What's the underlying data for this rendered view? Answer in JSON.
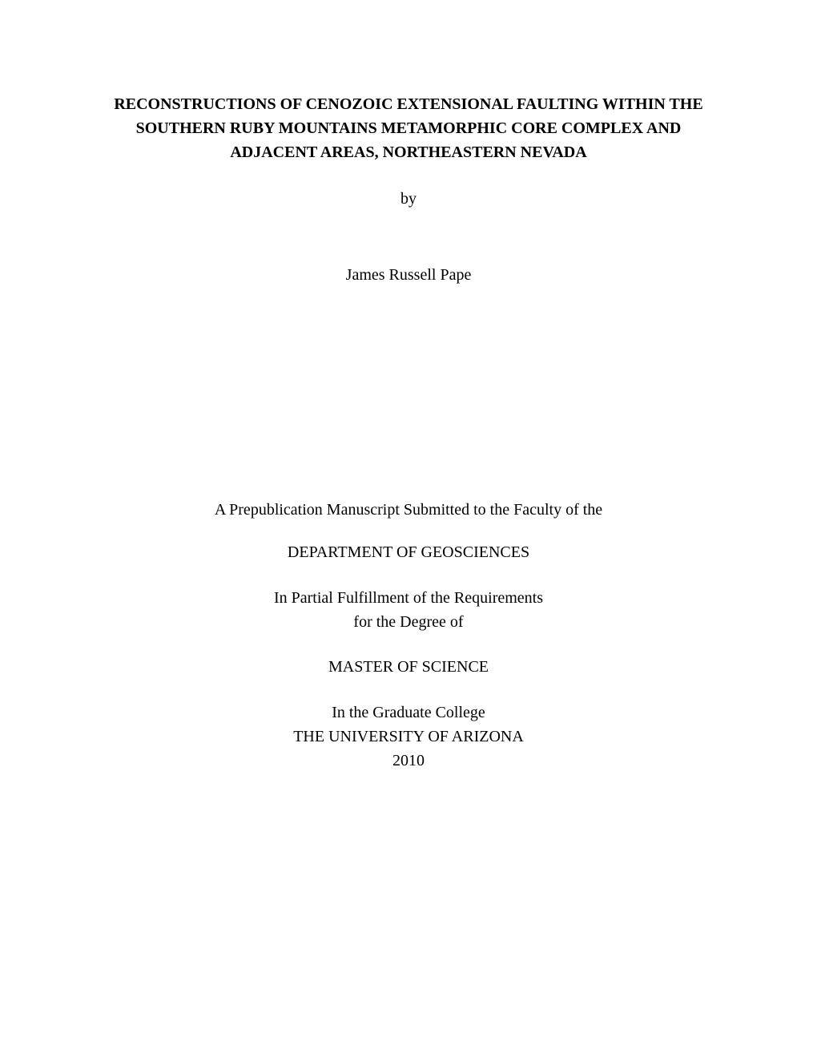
{
  "title_line1": "RECONSTRUCTIONS OF CENOZOIC EXTENSIONAL FAULTING WITHIN THE",
  "title_line2": "SOUTHERN RUBY MOUNTAINS METAMORPHIC CORE COMPLEX AND",
  "title_line3": "ADJACENT AREAS, NORTHEASTERN NEVADA",
  "by": "by",
  "author": "James Russell Pape",
  "manuscript": "A Prepublication Manuscript Submitted to the Faculty of the",
  "department": "DEPARTMENT OF GEOSCIENCES",
  "fulfillment_line1": "In Partial Fulfillment of the Requirements",
  "fulfillment_line2": "for the Degree of",
  "degree": "MASTER OF SCIENCE",
  "college_line1": "In the Graduate College",
  "college_line2": "THE UNIVERSITY OF ARIZONA",
  "year": "2010",
  "styles": {
    "background_color": "#ffffff",
    "text_color": "#000000",
    "font_family": "Times New Roman",
    "title_fontsize": 20,
    "body_fontsize": 20,
    "title_fontweight": "bold"
  }
}
